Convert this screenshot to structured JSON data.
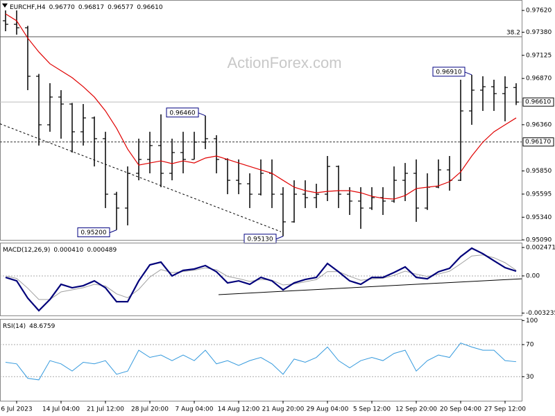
{
  "watermark": "ActionForex.com",
  "chart_data": [
    {
      "type": "ohlc",
      "symbol": "EURCHF,H4",
      "header_values": [
        {
          "value": 0.9677,
          "label": "0.96770"
        },
        {
          "value": 0.96817,
          "label": "0.96817"
        },
        {
          "value": 0.96577,
          "label": "0.96577"
        },
        {
          "value": 0.9661,
          "label": "0.96610"
        }
      ],
      "color": "#000000",
      "open": [
        0.97506,
        0.97467,
        0.97429,
        0.96894,
        0.96359,
        0.96665,
        0.96588,
        0.96282,
        0.96435,
        0.96206,
        0.95594,
        0.95441,
        0.95824,
        0.95977,
        0.9613,
        0.95824,
        0.96053,
        0.95977,
        0.96168,
        0.96206,
        0.95977,
        0.95747,
        0.95709,
        0.95594,
        0.95824,
        0.95594,
        0.95289,
        0.95594,
        0.95556,
        0.95594,
        0.959,
        0.95594,
        0.95518,
        0.95441,
        0.95556,
        0.95518,
        0.95747,
        0.95824,
        0.95441,
        0.95671,
        0.95862,
        0.95747,
        0.96512,
        0.96741,
        0.96779,
        0.96703,
        0.9677
      ],
      "high": [
        0.9762,
        0.9762,
        0.9745,
        0.9692,
        0.96818,
        0.96741,
        0.966,
        0.96588,
        0.9645,
        0.96282,
        0.9562,
        0.959,
        0.96206,
        0.96282,
        0.96474,
        0.96206,
        0.96282,
        0.96282,
        0.9646,
        0.96244,
        0.9599,
        0.95977,
        0.95824,
        0.95977,
        0.95977,
        0.95671,
        0.95747,
        0.95747,
        0.95709,
        0.96015,
        0.9591,
        0.95671,
        0.95671,
        0.95671,
        0.95671,
        0.959,
        0.95938,
        0.95977,
        0.95824,
        0.95977,
        0.96015,
        0.96856,
        0.9691,
        0.96894,
        0.96856,
        0.96894,
        0.96817
      ],
      "low": [
        0.97391,
        0.97353,
        0.96741,
        0.9613,
        0.96282,
        0.96206,
        0.96053,
        0.9613,
        0.959,
        0.95441,
        0.952,
        0.9525,
        0.95747,
        0.95824,
        0.95671,
        0.95747,
        0.95824,
        0.95977,
        0.96091,
        0.95824,
        0.95594,
        0.95594,
        0.95441,
        0.9558,
        0.95441,
        0.9513,
        0.9528,
        0.95441,
        0.95441,
        0.95518,
        0.95441,
        0.95365,
        0.95212,
        0.9542,
        0.95365,
        0.955,
        0.95518,
        0.95289,
        0.9542,
        0.9566,
        0.95633,
        0.9574,
        0.96359,
        0.96512,
        0.96512,
        0.96397,
        0.96577
      ],
      "close": [
        0.97467,
        0.97429,
        0.96894,
        0.96359,
        0.96665,
        0.96588,
        0.96282,
        0.96435,
        0.96206,
        0.95594,
        0.95441,
        0.95824,
        0.95977,
        0.9613,
        0.95824,
        0.96053,
        0.95977,
        0.96168,
        0.96206,
        0.95977,
        0.95747,
        0.95709,
        0.95594,
        0.95824,
        0.95594,
        0.95289,
        0.95594,
        0.95556,
        0.95594,
        0.959,
        0.95594,
        0.95518,
        0.95441,
        0.95556,
        0.95518,
        0.95747,
        0.95824,
        0.95441,
        0.95671,
        0.95862,
        0.95747,
        0.96512,
        0.96741,
        0.96779,
        0.96703,
        0.9677,
        0.9661
      ],
      "ma": {
        "color": "#e00000",
        "values": [
          0.97582,
          0.97506,
          0.97315,
          0.97162,
          0.97032,
          0.96955,
          0.96879,
          0.96779,
          0.96665,
          0.96512,
          0.96321,
          0.96091,
          0.95915,
          0.95938,
          0.95961,
          0.95931,
          0.95961,
          0.95938,
          0.95992,
          0.96015,
          0.95977,
          0.95938,
          0.959,
          0.95862,
          0.95824,
          0.95747,
          0.95671,
          0.95633,
          0.9561,
          0.95625,
          0.95633,
          0.95633,
          0.9561,
          0.95571,
          0.95548,
          0.9554,
          0.95579,
          0.95656,
          0.95671,
          0.95686,
          0.95732,
          0.95839,
          0.96015,
          0.96168,
          0.96282,
          0.96359,
          0.96435
        ]
      },
      "ylim": [
        0.9509,
        0.97735
      ],
      "yticks": [
        {
          "value": 0.9762,
          "label": "0.97620"
        },
        {
          "value": 0.9738,
          "label": "0.97380"
        },
        {
          "value": 0.97125,
          "label": "0.97125"
        },
        {
          "value": 0.9687,
          "label": "0.96870"
        },
        {
          "value": 0.9636,
          "label": "0.96360"
        },
        {
          "value": 0.9585,
          "label": "0.95850"
        },
        {
          "value": 0.95595,
          "label": "0.95595"
        },
        {
          "value": 0.9534,
          "label": "0.95340"
        },
        {
          "value": 0.9509,
          "label": "0.95090"
        }
      ],
      "price_levels": [
        {
          "value": 0.9661,
          "label": "0.96610",
          "style": "solid"
        },
        {
          "value": 0.9617,
          "label": "0.96170",
          "style": "dashed"
        }
      ],
      "fib_levels": [
        {
          "value": 0.9733,
          "label": "38.2"
        }
      ],
      "annotations": [
        {
          "value": 0.9691,
          "label": "0.96910"
        },
        {
          "value": 0.9646,
          "label": "0.96460"
        },
        {
          "value": 0.952,
          "label": "0.95200"
        },
        {
          "value": 0.9513,
          "label": "0.95130"
        }
      ],
      "trendline": [
        0.9637,
        0.9518
      ]
    },
    {
      "type": "macd",
      "title": "MACD(12,26,9)",
      "header_values": [
        {
          "value": 0.00041,
          "label": "0.000410"
        },
        0.000489
      ],
      "series": [
        {
          "color": "#00007a",
          "values": [
            -0.00013,
            -0.00043,
            -0.00193,
            -0.00302,
            -0.00205,
            -0.00073,
            -0.00103,
            -0.00085,
            -0.00043,
            -0.00103,
            -0.00224,
            -0.00224,
            -0.00043,
            0.00096,
            0.0012,
            0,
            0.00048,
            0.0006,
            0.0009,
            0.00036,
            -0.00061,
            -0.00043,
            -0.00073,
            -0.00013,
            -0.00043,
            -0.00121,
            -0.00061,
            -0.00031,
            -0.00013,
            0.00108,
            0.00036,
            -0.00043,
            -0.00073,
            -0.00013,
            -0.00013,
            0.0003,
            0.00078,
            -0.00013,
            -0.00025,
            0.00036,
            0.00066,
            0.00168,
            0.00241,
            0.00193,
            0.00132,
            0.00072,
            0.00041
          ]
        },
        {
          "color": "#a0a0a0",
          "values": [
            0,
            -0.00022,
            -0.00107,
            -0.00205,
            -0.00205,
            -0.00139,
            -0.00121,
            -0.00103,
            -0.00073,
            -0.00088,
            -0.00156,
            -0.0019,
            -0.00117,
            -0.0001,
            0.00055,
            0.00028,
            0.00038,
            0.00049,
            0.0007,
            0.00053,
            -4e-05,
            -0.00024,
            -0.00048,
            -0.00031,
            -0.00037,
            -0.00079,
            -0.0007,
            -0.00051,
            -0.00032,
            0.00038,
            0.00037,
            -3e-05,
            -0.00038,
            -0.00026,
            -0.0002,
            5e-05,
            0.00042,
            0.00015,
            -5e-05,
            0.00016,
            0.00041,
            0.00105,
            0.00173,
            0.00183,
            0.00158,
            0.00115,
            0.000489
          ]
        }
      ],
      "ylim": [
        -0.00344,
        0.00289
      ],
      "yticks": [
        0.002471,
        {
          "value": 0,
          "label": "0.00"
        },
        -0.003235
      ],
      "levels": [
        0
      ],
      "trendline": [
        -0.00163,
        -0.00025
      ]
    },
    {
      "type": "rsi",
      "title": "RSI(14)",
      "header_values": [
        48.6759
      ],
      "color": "#3399dd",
      "values": [
        48,
        46,
        28,
        26,
        50,
        46,
        37,
        48,
        46,
        50,
        33,
        37,
        63,
        54,
        57,
        50,
        57,
        50,
        63,
        46,
        50,
        44,
        50,
        54,
        46,
        33,
        52,
        48,
        54,
        67,
        50,
        41,
        50,
        54,
        50,
        59,
        63,
        37,
        50,
        57,
        54,
        72,
        67,
        63,
        63,
        50,
        48.6759
      ],
      "ylim": [
        0,
        102
      ],
      "yticks": [
        100,
        70,
        30
      ],
      "levels": [
        70,
        30
      ],
      "categories": [
        null,
        "6 Jul 2023",
        null,
        null,
        null,
        "14 Jul 04:00",
        null,
        null,
        null,
        "21 Jul 12:00",
        null,
        null,
        null,
        "28 Jul 20:00",
        null,
        null,
        null,
        "7 Aug 04:00",
        null,
        null,
        null,
        "14 Aug 12:00",
        null,
        null,
        null,
        "21 Aug 20:00",
        null,
        null,
        null,
        "29 Aug 04:00",
        null,
        null,
        null,
        "5 Sep 12:00",
        null,
        null,
        null,
        "12 Sep 20:00",
        null,
        null,
        null,
        "20 Sep 04:00",
        null,
        null,
        null,
        "27 Sep 12:00",
        null
      ]
    }
  ]
}
